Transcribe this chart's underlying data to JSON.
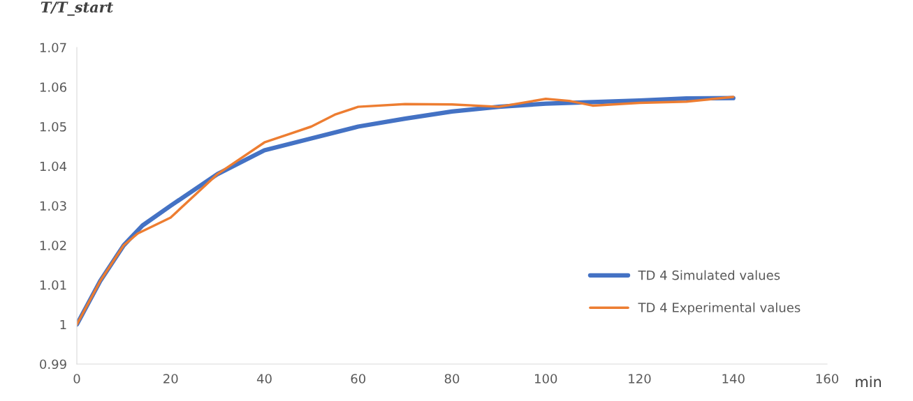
{
  "chart_data": {
    "type": "line",
    "ylabel": "T/T_start",
    "xlabel": "min",
    "xlim": [
      0,
      160
    ],
    "xticks": [
      0,
      20,
      40,
      60,
      80,
      100,
      120,
      140,
      160
    ],
    "ylim": [
      0.99,
      1.07
    ],
    "yticks": [
      0.99,
      {
        "value": 1.0,
        "label": "1"
      },
      1.01,
      1.02,
      1.03,
      1.04,
      1.05,
      1.06,
      1.07
    ],
    "grid": false,
    "legend": "bottom right",
    "marker": "none",
    "line_style": "solid",
    "series": [
      {
        "name": "TD 4 Simulated values",
        "color": "#4472c4",
        "x": [
          0,
          5,
          10,
          14,
          20,
          30,
          40,
          50,
          60,
          70,
          80,
          90,
          100,
          110,
          120,
          130,
          140
        ],
        "values": [
          1.0,
          1.011,
          1.02,
          1.025,
          1.03,
          1.038,
          1.044,
          1.047,
          1.05,
          1.052,
          1.0538,
          1.055,
          1.0558,
          1.0562,
          1.0566,
          1.0571,
          1.0572
        ]
      },
      {
        "name": "TD 4 Experimental values",
        "color": "#ed7d31",
        "x": [
          0,
          5,
          10,
          13,
          20,
          30,
          40,
          45,
          50,
          55,
          60,
          70,
          80,
          90,
          100,
          105,
          110,
          120,
          130,
          140
        ],
        "values": [
          1.0,
          1.011,
          1.02,
          1.023,
          1.027,
          1.038,
          1.046,
          1.048,
          1.05,
          1.053,
          1.055,
          1.0557,
          1.0556,
          1.055,
          1.057,
          1.0565,
          1.0553,
          1.056,
          1.0563,
          1.0575
        ]
      }
    ]
  }
}
